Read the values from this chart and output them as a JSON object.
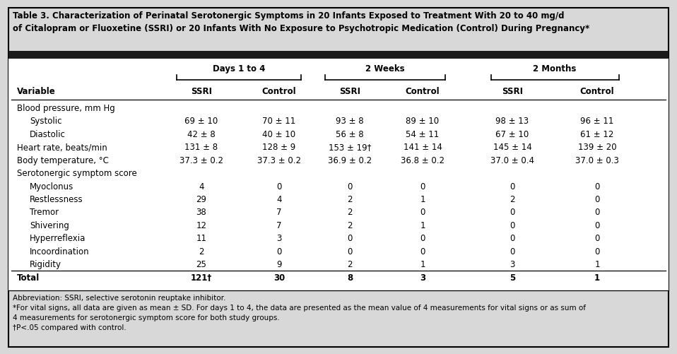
{
  "title_line1": "Table 3. Characterization of Perinatal Serotonergic Symptoms in 20 Infants Exposed to Treatment With 20 to 40 mg/d",
  "title_line2": "of Citalopram or Fluoxetine (SSRI) or 20 Infants With No Exposure to Psychotropic Medication (Control) During Pregnancy*",
  "col_groups": [
    "Days 1 to 4",
    "2 Weeks",
    "2 Months"
  ],
  "col_headers": [
    "Variable",
    "SSRI",
    "Control",
    "SSRI",
    "Control",
    "SSRI",
    "Control"
  ],
  "rows": [
    {
      "label": "Blood pressure, mm Hg",
      "values": [
        "",
        "",
        "",
        "",
        "",
        ""
      ],
      "indent": 0,
      "bold": false,
      "category": true
    },
    {
      "label": "Systolic",
      "values": [
        "69 ± 10",
        "70 ± 11",
        "93 ± 8",
        "89 ± 10",
        "98 ± 13",
        "96 ± 11"
      ],
      "indent": 1,
      "bold": false,
      "category": false
    },
    {
      "label": "Diastolic",
      "values": [
        "42 ± 8",
        "40 ± 10",
        "56 ± 8",
        "54 ± 11",
        "67 ± 10",
        "61 ± 12"
      ],
      "indent": 1,
      "bold": false,
      "category": false
    },
    {
      "label": "Heart rate, beats/min",
      "values": [
        "131 ± 8",
        "128 ± 9",
        "153 ± 19†",
        "141 ± 14",
        "145 ± 14",
        "139 ± 20"
      ],
      "indent": 0,
      "bold": false,
      "category": false
    },
    {
      "label": "Body temperature, °C",
      "values": [
        "37.3 ± 0.2",
        "37.3 ± 0.2",
        "36.9 ± 0.2",
        "36.8 ± 0.2",
        "37.0 ± 0.4",
        "37.0 ± 0.3"
      ],
      "indent": 0,
      "bold": false,
      "category": false
    },
    {
      "label": "Serotonergic symptom score",
      "values": [
        "",
        "",
        "",
        "",
        "",
        ""
      ],
      "indent": 0,
      "bold": false,
      "category": true
    },
    {
      "label": "Myoclonus",
      "values": [
        "4",
        "0",
        "0",
        "0",
        "0",
        "0"
      ],
      "indent": 1,
      "bold": false,
      "category": false
    },
    {
      "label": "Restlessness",
      "values": [
        "29",
        "4",
        "2",
        "1",
        "2",
        "0"
      ],
      "indent": 1,
      "bold": false,
      "category": false
    },
    {
      "label": "Tremor",
      "values": [
        "38",
        "7",
        "2",
        "0",
        "0",
        "0"
      ],
      "indent": 1,
      "bold": false,
      "category": false
    },
    {
      "label": "Shivering",
      "values": [
        "12",
        "7",
        "2",
        "1",
        "0",
        "0"
      ],
      "indent": 1,
      "bold": false,
      "category": false
    },
    {
      "label": "Hyperreflexia",
      "values": [
        "11",
        "3",
        "0",
        "0",
        "0",
        "0"
      ],
      "indent": 1,
      "bold": false,
      "category": false
    },
    {
      "label": "Incoordination",
      "values": [
        "2",
        "0",
        "0",
        "0",
        "0",
        "0"
      ],
      "indent": 1,
      "bold": false,
      "category": false
    },
    {
      "label": "Rigidity",
      "values": [
        "25",
        "9",
        "2",
        "1",
        "3",
        "1"
      ],
      "indent": 1,
      "bold": false,
      "category": false
    },
    {
      "label": "Total",
      "values": [
        "121†",
        "30",
        "8",
        "3",
        "5",
        "1"
      ],
      "indent": 0,
      "bold": true,
      "category": false
    }
  ],
  "footnotes": [
    "Abbreviation: SSRI, selective serotonin reuptake inhibitor.",
    "*For vital signs, all data are given as mean ± SD. For days 1 to 4, the data are presented as the mean value of 4 measurements for vital signs or as sum of",
    "4 measurements for serotonergic symptom score for both study groups.",
    "†P<.05 compared with control."
  ],
  "bg_color": "#d8d8d8",
  "dark_bar_color": "#1a1a1a",
  "title_fontsize": 8.5,
  "header_fontsize": 8.5,
  "data_fontsize": 8.5,
  "footnote_fontsize": 7.5
}
